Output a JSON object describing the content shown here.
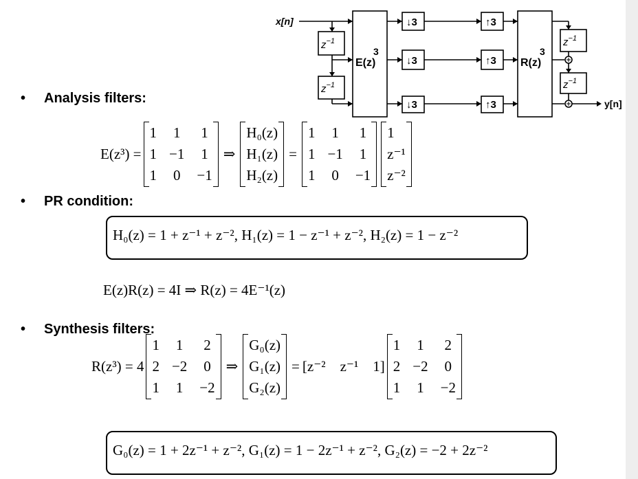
{
  "diagram": {
    "input_label": "x[n]",
    "output_label": "y[n]",
    "delay_label": "z",
    "delay_exp": "−1",
    "E_label": "E(z)",
    "R_label": "R(z)",
    "block_exp": "3",
    "down_label": "↓3",
    "up_label": "↑3"
  },
  "bullets": {
    "analysis": "Analysis filters:",
    "pr": "PR condition:",
    "synthesis": "Synthesis filters:",
    "dot": "•"
  },
  "analysis_eq": {
    "lhs": "E(z³) =",
    "matrix": [
      [
        "1",
        "1",
        "1"
      ],
      [
        "1",
        "−1",
        "1"
      ],
      [
        "1",
        "0",
        "−1"
      ]
    ],
    "implies": "⇒",
    "filters": [
      "H₀(z)",
      "H₁(z)",
      "H₂(z)"
    ],
    "equals": "=",
    "vector": [
      "1",
      "z⁻¹",
      "z⁻²"
    ]
  },
  "h_box": "H₀(z) = 1 + z⁻¹ + z⁻²,   H₁(z) = 1 − z⁻¹ + z⁻²,     H₂(z) = 1 − z⁻²",
  "er_eq": "E(z)R(z) = 4I  ⇒ R(z) = 4E⁻¹(z)",
  "synthesis_eq": {
    "lhs": "R(z³) = 4",
    "matrix": [
      [
        "1",
        "1",
        "2"
      ],
      [
        "2",
        "−2",
        "0"
      ],
      [
        "1",
        "1",
        "−2"
      ]
    ],
    "implies": "⇒",
    "filters": [
      "G₀(z)",
      "G₁(z)",
      "G₂(z)"
    ],
    "equals": "=",
    "row_vector": "[z⁻²    z⁻¹    1]"
  },
  "g_box": "G₀(z) = 1 + 2z⁻¹ + z⁻²,   G₁(z) = 1 − 2z⁻¹ + z⁻²,     G₂(z) = −2 + 2z⁻²"
}
